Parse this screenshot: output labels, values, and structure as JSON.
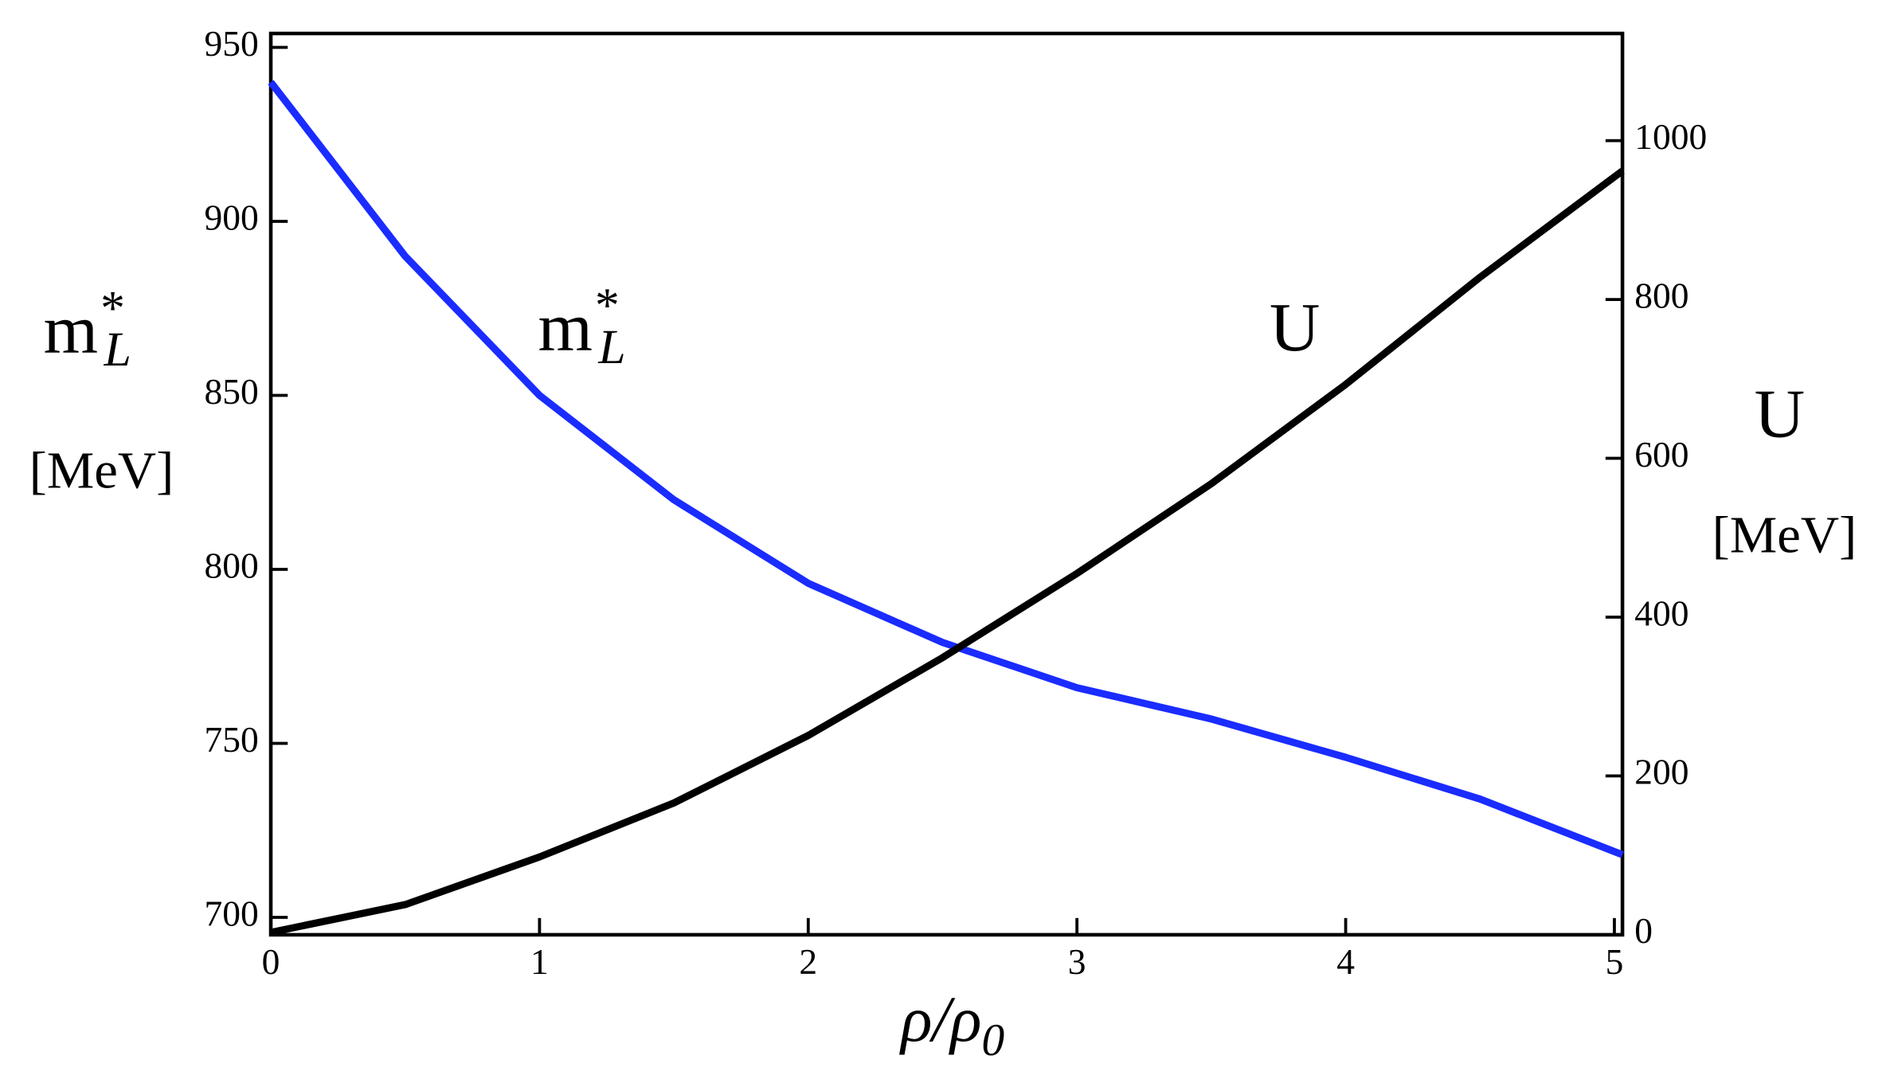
{
  "chart_data": {
    "type": "line",
    "xlabel": {
      "base": "ρ/ρ",
      "sub": "0"
    },
    "ylabel": {
      "base": "m",
      "sup": "*",
      "sub": "L",
      "units": "[MeV]"
    },
    "y2label": {
      "base": "U",
      "units": "[MeV]"
    },
    "annotations": [
      {
        "base": "m",
        "sup": "*",
        "sub": "L"
      },
      {
        "base": "U"
      }
    ],
    "x": [
      0,
      0.5,
      1,
      1.5,
      2,
      2.5,
      3,
      3.5,
      4,
      4.5,
      5.03
    ],
    "series": [
      {
        "name": "m*_L",
        "color": "#1a2cff",
        "axis": "y",
        "values": [
          940,
          890,
          850,
          820,
          796,
          779,
          766,
          757,
          746,
          734,
          718
        ]
      },
      {
        "name": "U",
        "color": "#000000",
        "axis": "y2",
        "values": [
          3,
          38,
          98,
          166,
          251,
          349,
          455,
          568,
          693,
          828,
          962
        ]
      }
    ],
    "xlim": [
      0,
      5.03
    ],
    "xticks": [
      0,
      1,
      2,
      3,
      4,
      5
    ],
    "ylim": [
      695,
      954
    ],
    "yticks": [
      700,
      750,
      800,
      850,
      900,
      950
    ],
    "y2lim": [
      0,
      1135
    ],
    "y2ticks": [
      0,
      200,
      400,
      600,
      800,
      1000
    ],
    "grid": false
  }
}
